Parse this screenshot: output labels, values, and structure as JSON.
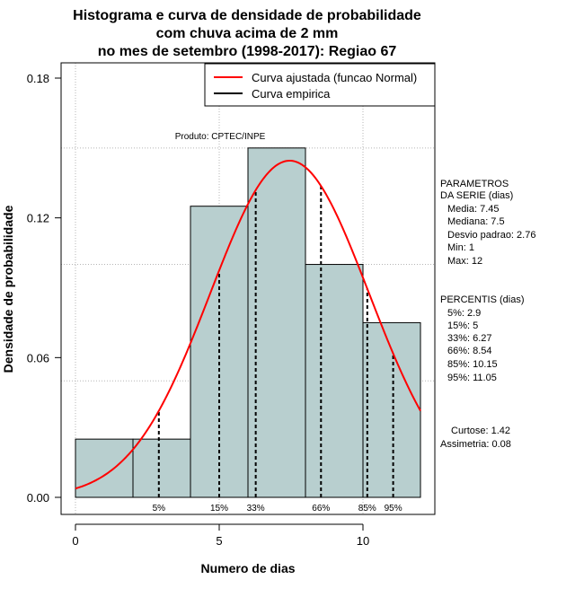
{
  "chart_data": {
    "type": "histogram",
    "title_lines": [
      "Histograma e curva de densidade de probabilidade",
      "com chuva acima de 2 mm",
      "no mes de setembro (1998-2017): Regiao 67"
    ],
    "xlabel": "Numero de dias",
    "ylabel": "Densidade de probabilidade",
    "xlim": [
      -0.5,
      12.5
    ],
    "ylim": [
      0,
      0.185
    ],
    "x_ticks": [
      0,
      5,
      10
    ],
    "x_tick_labels": [
      "0",
      "5",
      "10"
    ],
    "y_ticks": [
      0.0,
      0.06,
      0.12,
      0.18
    ],
    "y_tick_labels": [
      "0.00",
      "0.06",
      "0.12",
      "0.18"
    ],
    "gridlines_x": [
      0,
      5,
      10
    ],
    "gridlines_y": [
      0.05,
      0.1,
      0.15
    ],
    "bins": [
      {
        "from": 0,
        "to": 2,
        "density": 0.025
      },
      {
        "from": 2,
        "to": 4,
        "density": 0.025
      },
      {
        "from": 4,
        "to": 6,
        "density": 0.125
      },
      {
        "from": 6,
        "to": 8,
        "density": 0.15
      },
      {
        "from": 8,
        "to": 10,
        "density": 0.1
      },
      {
        "from": 10,
        "to": 12,
        "density": 0.075
      }
    ],
    "fitted_curve": {
      "type": "normal",
      "mean": 7.45,
      "sd": 2.76,
      "x_from": 0,
      "x_to": 12
    },
    "percentile_marks": [
      {
        "label": "5%",
        "x": 2.9
      },
      {
        "label": "15%",
        "x": 5
      },
      {
        "label": "33%",
        "x": 6.27
      },
      {
        "label": "66%",
        "x": 8.54
      },
      {
        "label": "85%",
        "x": 10.15
      },
      {
        "label": "95%",
        "x": 11.05
      }
    ],
    "legend": {
      "position": "top-right",
      "entries": [
        {
          "label": "Curva ajustada (funcao Normal)",
          "color": "#ff0000"
        },
        {
          "label": "Curva empirica",
          "color": "#000000"
        }
      ]
    },
    "annotation": "Produto: CPTEC/INPE",
    "bar_color": "#b8cfcf"
  },
  "side_panel": {
    "parametros_title": [
      "PARAMETROS",
      "DA SERIE (dias)"
    ],
    "parametros": [
      "Media: 7.45",
      "Mediana: 7.5",
      "Desvio padrao: 2.76",
      "Min: 1",
      "Max: 12"
    ],
    "percentis_title": "PERCENTIS (dias)",
    "percentis": [
      "5%: 2.9",
      "15%: 5",
      "33%: 6.27",
      "66%: 8.54",
      "85%: 10.15",
      "95%: 11.05"
    ],
    "curtose": "Curtose: 1.42",
    "assimetria": "Assimetria: 0.08"
  }
}
